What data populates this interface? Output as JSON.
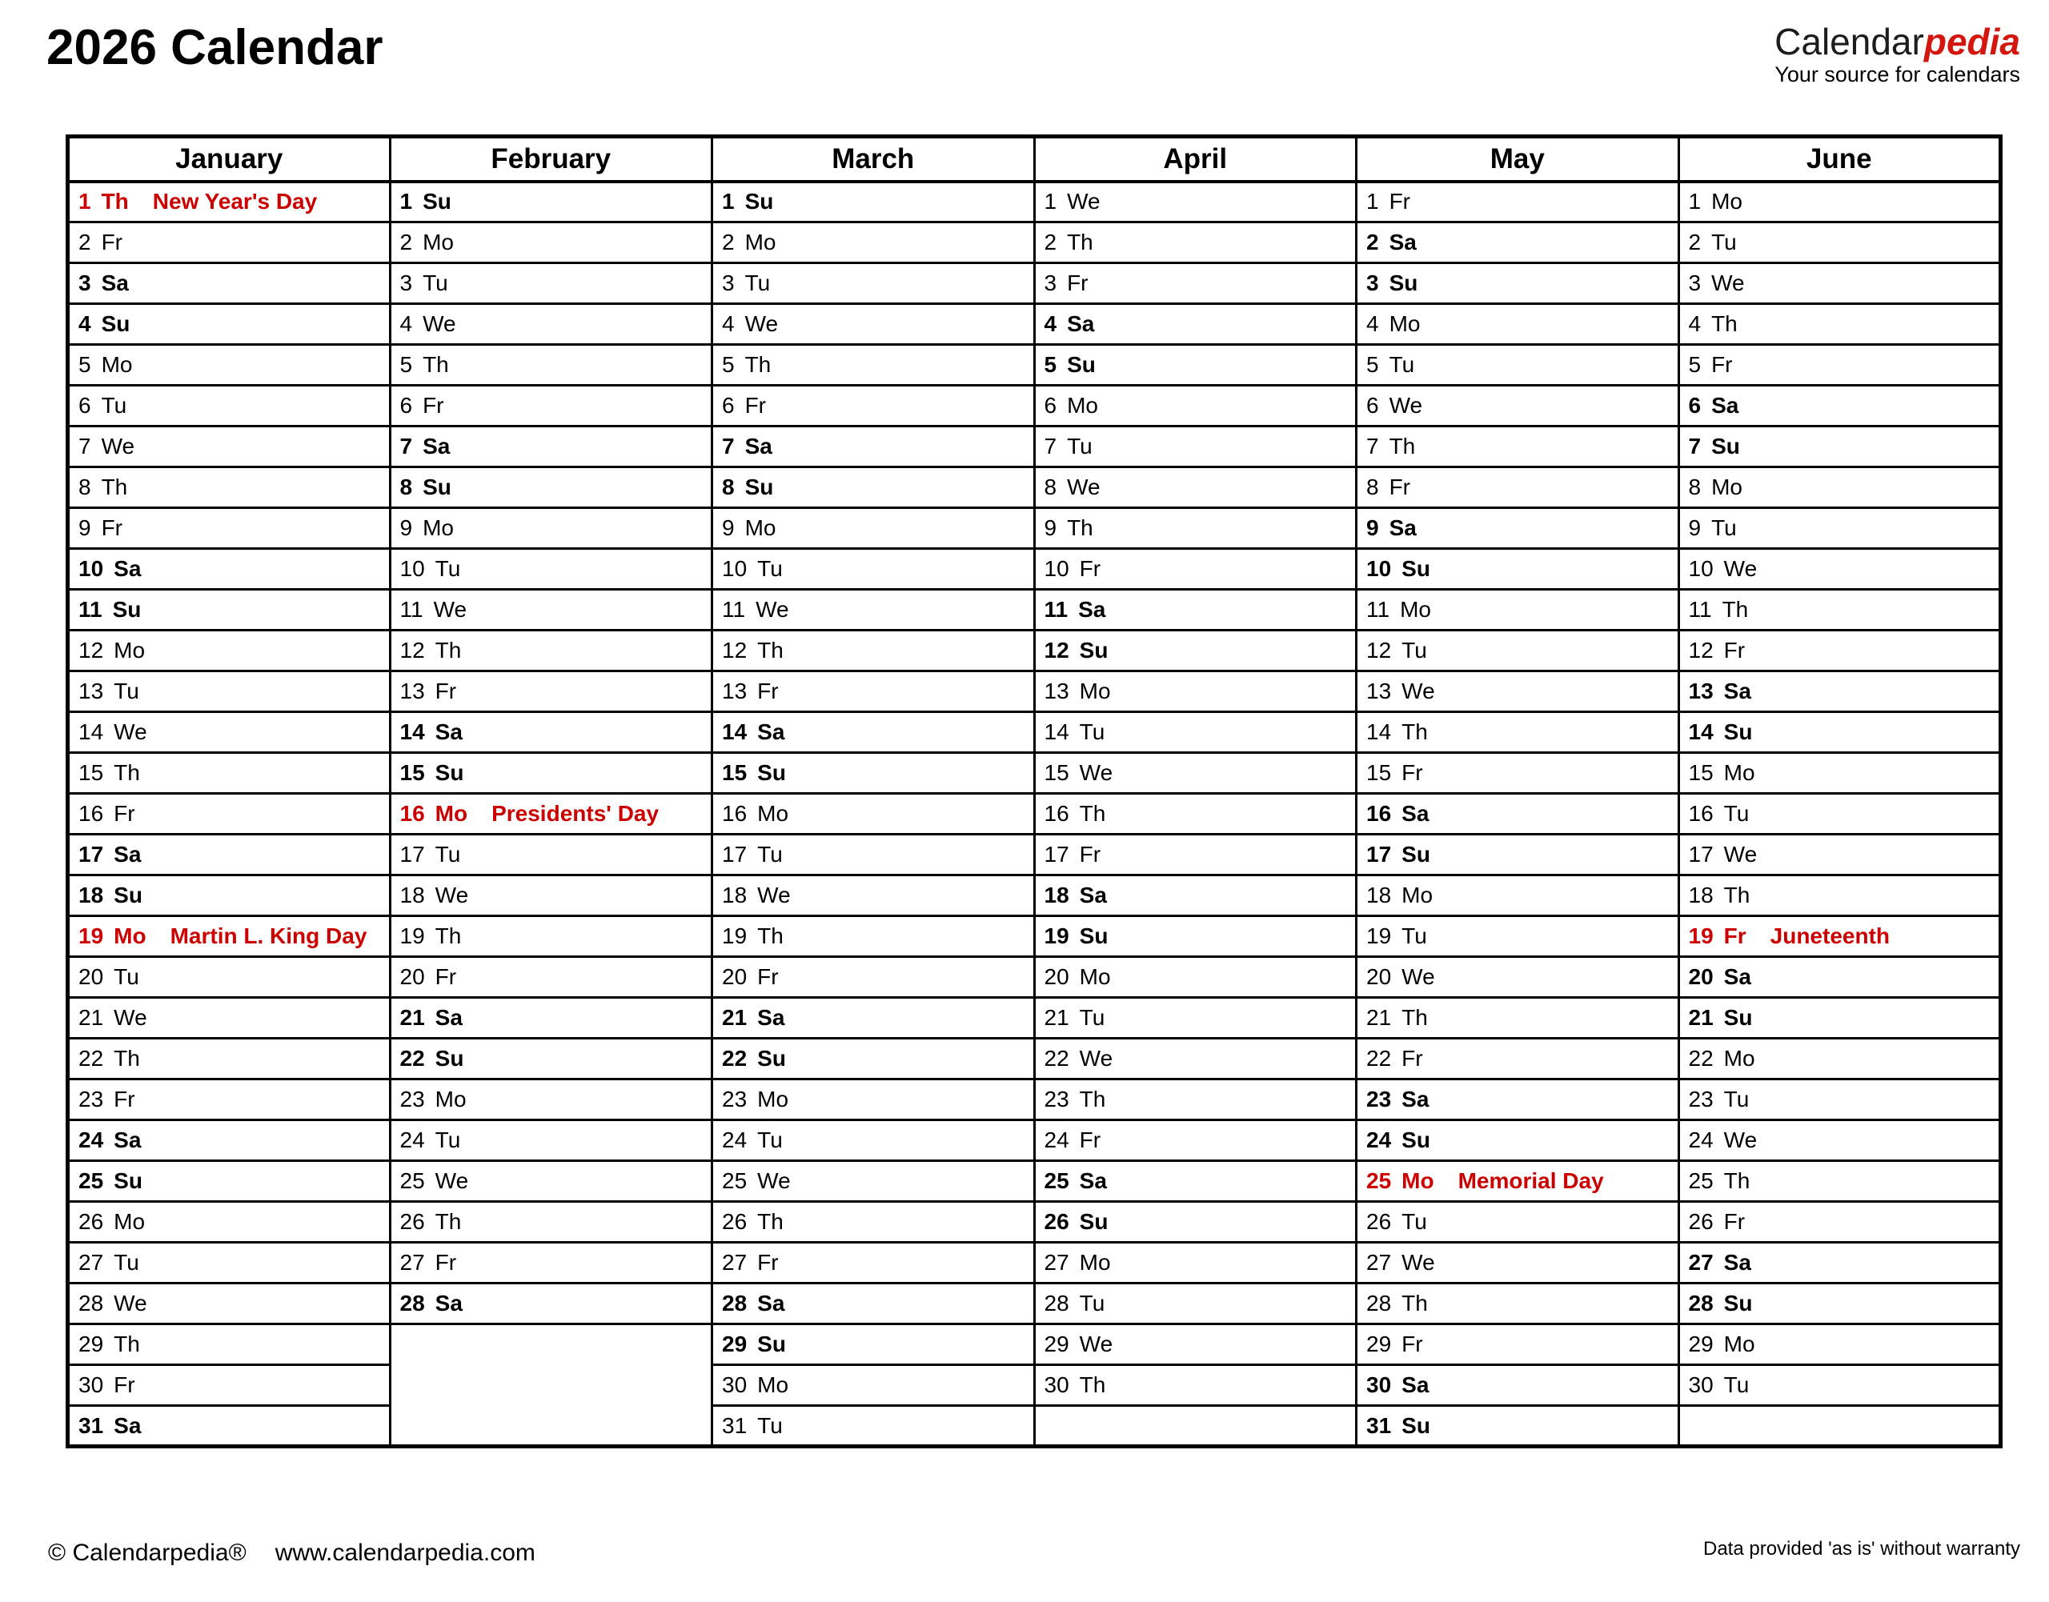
{
  "header": {
    "title": "2026 Calendar",
    "logo": {
      "part1": "Calendar",
      "part2": "pedia",
      "tagline": "Your source for calendars"
    }
  },
  "footer": {
    "copyright": "© Calendarpedia®",
    "website": "www.calendarpedia.com",
    "disclaimer": "Data provided 'as is' without warranty"
  },
  "colors": {
    "saturday_bg": "#FCFCC7",
    "sunday_bg": "#F9BE77",
    "holiday_bg": "#FACCCC",
    "holiday_text": "#CC0000",
    "empty_bg": "#E0E0E0",
    "logo_red": "#D3170E",
    "border": "#000000"
  },
  "bold_weekdays": [
    "Sa",
    "Su"
  ],
  "months": [
    {
      "name": "January",
      "days": [
        [
          1,
          "Th",
          "New Year's Day"
        ],
        [
          2,
          "Fr"
        ],
        [
          3,
          "Sa"
        ],
        [
          4,
          "Su"
        ],
        [
          5,
          "Mo"
        ],
        [
          6,
          "Tu"
        ],
        [
          7,
          "We"
        ],
        [
          8,
          "Th"
        ],
        [
          9,
          "Fr"
        ],
        [
          10,
          "Sa"
        ],
        [
          11,
          "Su"
        ],
        [
          12,
          "Mo"
        ],
        [
          13,
          "Tu"
        ],
        [
          14,
          "We"
        ],
        [
          15,
          "Th"
        ],
        [
          16,
          "Fr"
        ],
        [
          17,
          "Sa"
        ],
        [
          18,
          "Su"
        ],
        [
          19,
          "Mo",
          "Martin L. King Day"
        ],
        [
          20,
          "Tu"
        ],
        [
          21,
          "We"
        ],
        [
          22,
          "Th"
        ],
        [
          23,
          "Fr"
        ],
        [
          24,
          "Sa"
        ],
        [
          25,
          "Su"
        ],
        [
          26,
          "Mo"
        ],
        [
          27,
          "Tu"
        ],
        [
          28,
          "We"
        ],
        [
          29,
          "Th"
        ],
        [
          30,
          "Fr"
        ],
        [
          31,
          "Sa"
        ]
      ]
    },
    {
      "name": "February",
      "days": [
        [
          1,
          "Su"
        ],
        [
          2,
          "Mo"
        ],
        [
          3,
          "Tu"
        ],
        [
          4,
          "We"
        ],
        [
          5,
          "Th"
        ],
        [
          6,
          "Fr"
        ],
        [
          7,
          "Sa"
        ],
        [
          8,
          "Su"
        ],
        [
          9,
          "Mo"
        ],
        [
          10,
          "Tu"
        ],
        [
          11,
          "We"
        ],
        [
          12,
          "Th"
        ],
        [
          13,
          "Fr"
        ],
        [
          14,
          "Sa"
        ],
        [
          15,
          "Su"
        ],
        [
          16,
          "Mo",
          "Presidents' Day"
        ],
        [
          17,
          "Tu"
        ],
        [
          18,
          "We"
        ],
        [
          19,
          "Th"
        ],
        [
          20,
          "Fr"
        ],
        [
          21,
          "Sa"
        ],
        [
          22,
          "Su"
        ],
        [
          23,
          "Mo"
        ],
        [
          24,
          "Tu"
        ],
        [
          25,
          "We"
        ],
        [
          26,
          "Th"
        ],
        [
          27,
          "Fr"
        ],
        [
          28,
          "Sa"
        ]
      ]
    },
    {
      "name": "March",
      "days": [
        [
          1,
          "Su"
        ],
        [
          2,
          "Mo"
        ],
        [
          3,
          "Tu"
        ],
        [
          4,
          "We"
        ],
        [
          5,
          "Th"
        ],
        [
          6,
          "Fr"
        ],
        [
          7,
          "Sa"
        ],
        [
          8,
          "Su"
        ],
        [
          9,
          "Mo"
        ],
        [
          10,
          "Tu"
        ],
        [
          11,
          "We"
        ],
        [
          12,
          "Th"
        ],
        [
          13,
          "Fr"
        ],
        [
          14,
          "Sa"
        ],
        [
          15,
          "Su"
        ],
        [
          16,
          "Mo"
        ],
        [
          17,
          "Tu"
        ],
        [
          18,
          "We"
        ],
        [
          19,
          "Th"
        ],
        [
          20,
          "Fr"
        ],
        [
          21,
          "Sa"
        ],
        [
          22,
          "Su"
        ],
        [
          23,
          "Mo"
        ],
        [
          24,
          "Tu"
        ],
        [
          25,
          "We"
        ],
        [
          26,
          "Th"
        ],
        [
          27,
          "Fr"
        ],
        [
          28,
          "Sa"
        ],
        [
          29,
          "Su"
        ],
        [
          30,
          "Mo"
        ],
        [
          31,
          "Tu"
        ]
      ]
    },
    {
      "name": "April",
      "days": [
        [
          1,
          "We"
        ],
        [
          2,
          "Th"
        ],
        [
          3,
          "Fr"
        ],
        [
          4,
          "Sa"
        ],
        [
          5,
          "Su"
        ],
        [
          6,
          "Mo"
        ],
        [
          7,
          "Tu"
        ],
        [
          8,
          "We"
        ],
        [
          9,
          "Th"
        ],
        [
          10,
          "Fr"
        ],
        [
          11,
          "Sa"
        ],
        [
          12,
          "Su"
        ],
        [
          13,
          "Mo"
        ],
        [
          14,
          "Tu"
        ],
        [
          15,
          "We"
        ],
        [
          16,
          "Th"
        ],
        [
          17,
          "Fr"
        ],
        [
          18,
          "Sa"
        ],
        [
          19,
          "Su"
        ],
        [
          20,
          "Mo"
        ],
        [
          21,
          "Tu"
        ],
        [
          22,
          "We"
        ],
        [
          23,
          "Th"
        ],
        [
          24,
          "Fr"
        ],
        [
          25,
          "Sa"
        ],
        [
          26,
          "Su"
        ],
        [
          27,
          "Mo"
        ],
        [
          28,
          "Tu"
        ],
        [
          29,
          "We"
        ],
        [
          30,
          "Th"
        ]
      ]
    },
    {
      "name": "May",
      "days": [
        [
          1,
          "Fr"
        ],
        [
          2,
          "Sa"
        ],
        [
          3,
          "Su"
        ],
        [
          4,
          "Mo"
        ],
        [
          5,
          "Tu"
        ],
        [
          6,
          "We"
        ],
        [
          7,
          "Th"
        ],
        [
          8,
          "Fr"
        ],
        [
          9,
          "Sa"
        ],
        [
          10,
          "Su"
        ],
        [
          11,
          "Mo"
        ],
        [
          12,
          "Tu"
        ],
        [
          13,
          "We"
        ],
        [
          14,
          "Th"
        ],
        [
          15,
          "Fr"
        ],
        [
          16,
          "Sa"
        ],
        [
          17,
          "Su"
        ],
        [
          18,
          "Mo"
        ],
        [
          19,
          "Tu"
        ],
        [
          20,
          "We"
        ],
        [
          21,
          "Th"
        ],
        [
          22,
          "Fr"
        ],
        [
          23,
          "Sa"
        ],
        [
          24,
          "Su"
        ],
        [
          25,
          "Mo",
          "Memorial Day"
        ],
        [
          26,
          "Tu"
        ],
        [
          27,
          "We"
        ],
        [
          28,
          "Th"
        ],
        [
          29,
          "Fr"
        ],
        [
          30,
          "Sa"
        ],
        [
          31,
          "Su"
        ]
      ]
    },
    {
      "name": "June",
      "days": [
        [
          1,
          "Mo"
        ],
        [
          2,
          "Tu"
        ],
        [
          3,
          "We"
        ],
        [
          4,
          "Th"
        ],
        [
          5,
          "Fr"
        ],
        [
          6,
          "Sa"
        ],
        [
          7,
          "Su"
        ],
        [
          8,
          "Mo"
        ],
        [
          9,
          "Tu"
        ],
        [
          10,
          "We"
        ],
        [
          11,
          "Th"
        ],
        [
          12,
          "Fr"
        ],
        [
          13,
          "Sa"
        ],
        [
          14,
          "Su"
        ],
        [
          15,
          "Mo"
        ],
        [
          16,
          "Tu"
        ],
        [
          17,
          "We"
        ],
        [
          18,
          "Th"
        ],
        [
          19,
          "Fr",
          "Juneteenth"
        ],
        [
          20,
          "Sa"
        ],
        [
          21,
          "Su"
        ],
        [
          22,
          "Mo"
        ],
        [
          23,
          "Tu"
        ],
        [
          24,
          "We"
        ],
        [
          25,
          "Th"
        ],
        [
          26,
          "Fr"
        ],
        [
          27,
          "Sa"
        ],
        [
          28,
          "Su"
        ],
        [
          29,
          "Mo"
        ],
        [
          30,
          "Tu"
        ]
      ]
    }
  ]
}
